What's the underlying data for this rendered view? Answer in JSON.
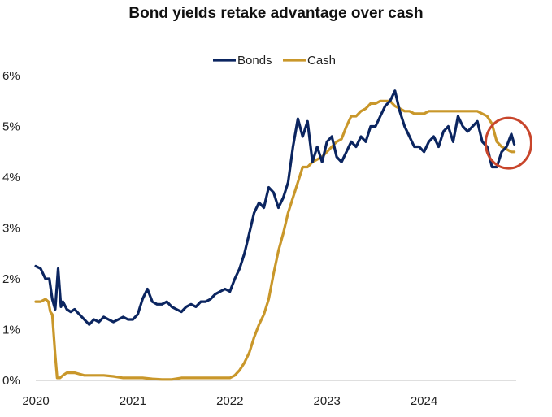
{
  "chart_data": {
    "type": "line",
    "title": "Bond yields retake advantage over cash",
    "xlabel": "",
    "ylabel": "",
    "x_ticks": [
      "2020",
      "2021",
      "2022",
      "2023",
      "2024"
    ],
    "xlim": [
      2020.0,
      2024.95
    ],
    "ylim": [
      0,
      6
    ],
    "y_ticks": [
      0,
      1,
      2,
      3,
      4,
      5,
      6
    ],
    "y_tick_labels": [
      "0%",
      "1%",
      "2%",
      "3%",
      "4%",
      "5%",
      "6%"
    ],
    "grid": false,
    "legend": "top-center",
    "annotation": {
      "type": "circle",
      "color": "#c8452b",
      "x": 2024.87,
      "y": 4.67
    },
    "series": [
      {
        "name": "Bonds",
        "color": "#0b2560",
        "x": [
          2020.0,
          2020.05,
          2020.1,
          2020.14,
          2020.17,
          2020.2,
          2020.23,
          2020.26,
          2020.28,
          2020.32,
          2020.36,
          2020.4,
          2020.45,
          2020.5,
          2020.55,
          2020.6,
          2020.65,
          2020.7,
          2020.75,
          2020.8,
          2020.85,
          2020.9,
          2020.95,
          2021.0,
          2021.05,
          2021.1,
          2021.15,
          2021.2,
          2021.25,
          2021.3,
          2021.35,
          2021.4,
          2021.45,
          2021.5,
          2021.55,
          2021.6,
          2021.65,
          2021.7,
          2021.75,
          2021.8,
          2021.85,
          2021.9,
          2021.95,
          2022.0,
          2022.05,
          2022.1,
          2022.15,
          2022.2,
          2022.25,
          2022.3,
          2022.35,
          2022.4,
          2022.45,
          2022.5,
          2022.55,
          2022.6,
          2022.65,
          2022.7,
          2022.75,
          2022.8,
          2022.85,
          2022.9,
          2022.95,
          2023.0,
          2023.05,
          2023.1,
          2023.15,
          2023.2,
          2023.25,
          2023.3,
          2023.35,
          2023.4,
          2023.45,
          2023.5,
          2023.55,
          2023.6,
          2023.65,
          2023.7,
          2023.75,
          2023.8,
          2023.85,
          2023.9,
          2023.95,
          2024.0,
          2024.05,
          2024.1,
          2024.15,
          2024.2,
          2024.25,
          2024.3,
          2024.35,
          2024.4,
          2024.45,
          2024.5,
          2024.55,
          2024.6,
          2024.65,
          2024.7,
          2024.75,
          2024.8,
          2024.85,
          2024.9,
          2024.93
        ],
        "values": [
          2.25,
          2.2,
          2.0,
          2.0,
          1.6,
          1.4,
          2.2,
          1.45,
          1.55,
          1.4,
          1.35,
          1.4,
          1.3,
          1.2,
          1.1,
          1.2,
          1.15,
          1.25,
          1.2,
          1.15,
          1.2,
          1.25,
          1.2,
          1.2,
          1.3,
          1.6,
          1.8,
          1.55,
          1.5,
          1.5,
          1.55,
          1.45,
          1.4,
          1.35,
          1.45,
          1.5,
          1.45,
          1.55,
          1.55,
          1.6,
          1.7,
          1.75,
          1.8,
          1.75,
          2.0,
          2.2,
          2.5,
          2.9,
          3.3,
          3.5,
          3.4,
          3.8,
          3.7,
          3.4,
          3.6,
          3.9,
          4.6,
          5.15,
          4.8,
          5.1,
          4.3,
          4.6,
          4.3,
          4.7,
          4.8,
          4.4,
          4.3,
          4.5,
          4.7,
          4.6,
          4.8,
          4.7,
          5.0,
          5.0,
          5.2,
          5.4,
          5.5,
          5.7,
          5.3,
          5.0,
          4.8,
          4.6,
          4.6,
          4.5,
          4.7,
          4.8,
          4.6,
          4.9,
          5.0,
          4.7,
          5.2,
          5.0,
          4.9,
          5.0,
          5.1,
          4.7,
          4.6,
          4.2,
          4.2,
          4.5,
          4.6,
          4.85,
          4.65
        ]
      },
      {
        "name": "Cash",
        "color": "#c9972a",
        "x": [
          2020.0,
          2020.05,
          2020.1,
          2020.13,
          2020.15,
          2020.17,
          2020.2,
          2020.22,
          2020.25,
          2020.28,
          2020.32,
          2020.4,
          2020.5,
          2020.6,
          2020.7,
          2020.8,
          2020.9,
          2021.0,
          2021.1,
          2021.2,
          2021.3,
          2021.4,
          2021.5,
          2021.6,
          2021.7,
          2021.8,
          2021.9,
          2022.0,
          2022.05,
          2022.1,
          2022.15,
          2022.2,
          2022.25,
          2022.3,
          2022.35,
          2022.4,
          2022.45,
          2022.5,
          2022.55,
          2022.6,
          2022.65,
          2022.7,
          2022.75,
          2022.8,
          2022.85,
          2022.9,
          2022.95,
          2023.0,
          2023.05,
          2023.1,
          2023.15,
          2023.2,
          2023.25,
          2023.3,
          2023.35,
          2023.4,
          2023.45,
          2023.5,
          2023.55,
          2023.6,
          2023.65,
          2023.7,
          2023.75,
          2023.8,
          2023.85,
          2023.9,
          2023.95,
          2024.0,
          2024.05,
          2024.1,
          2024.15,
          2024.2,
          2024.25,
          2024.3,
          2024.35,
          2024.4,
          2024.45,
          2024.5,
          2024.55,
          2024.6,
          2024.65,
          2024.7,
          2024.75,
          2024.8,
          2024.85,
          2024.9,
          2024.93
        ],
        "values": [
          1.55,
          1.55,
          1.6,
          1.55,
          1.35,
          1.3,
          0.5,
          0.05,
          0.05,
          0.1,
          0.15,
          0.15,
          0.1,
          0.1,
          0.1,
          0.08,
          0.05,
          0.05,
          0.05,
          0.03,
          0.02,
          0.02,
          0.05,
          0.05,
          0.05,
          0.05,
          0.05,
          0.05,
          0.1,
          0.2,
          0.35,
          0.55,
          0.85,
          1.1,
          1.3,
          1.6,
          2.1,
          2.55,
          2.9,
          3.3,
          3.6,
          3.9,
          4.2,
          4.2,
          4.3,
          4.35,
          4.4,
          4.5,
          4.6,
          4.7,
          4.75,
          5.0,
          5.2,
          5.2,
          5.3,
          5.35,
          5.45,
          5.45,
          5.5,
          5.5,
          5.5,
          5.4,
          5.35,
          5.3,
          5.3,
          5.25,
          5.25,
          5.25,
          5.3,
          5.3,
          5.3,
          5.3,
          5.3,
          5.3,
          5.3,
          5.3,
          5.3,
          5.3,
          5.3,
          5.25,
          5.2,
          5.05,
          4.7,
          4.6,
          4.55,
          4.5,
          4.5
        ]
      }
    ]
  }
}
